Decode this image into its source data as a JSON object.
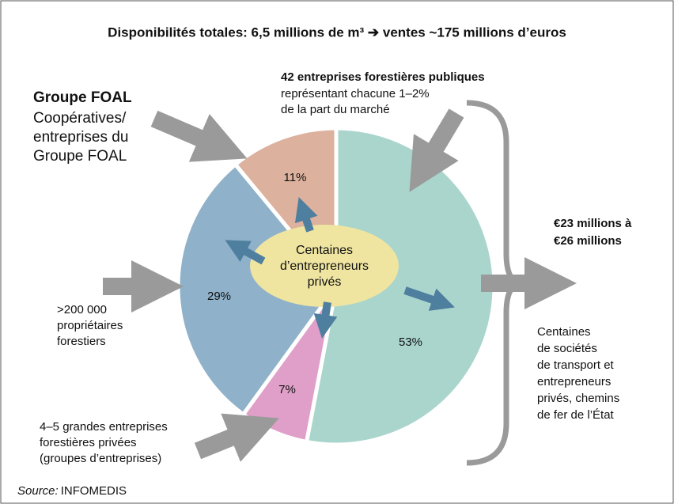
{
  "chart_data": {
    "type": "pie",
    "title": "Disponibilités totales: 6,5 millions de m³ ➔ ventes ~175 millions d’euros",
    "values": [
      53,
      7,
      29,
      11
    ],
    "value_labels": [
      "53%",
      "7%",
      "29%",
      "11%"
    ],
    "colors": [
      "#a9d5cc",
      "#df9fc8",
      "#8fb1c9",
      "#dcb19d"
    ],
    "center_label": [
      "Centaines",
      "d’entrepreneurs",
      "privés"
    ],
    "annotations": {
      "foal_title": "Groupe FOAL",
      "foal": [
        "Coopératives/",
        "entreprises du",
        "Groupe FOAL"
      ],
      "public_title": "42 entreprises forestières publiques",
      "public": [
        "représentant chacune 1–2%",
        "de la part du marché"
      ],
      "owners": [
        ">200 000",
        "propriétaires",
        "forestiers"
      ],
      "private": [
        "4–5 grandes entreprises",
        "forestières privées",
        "(groupes d’entreprises)"
      ],
      "range": [
        "€23 millions à",
        "€26 millions"
      ],
      "buyers": [
        "Centaines",
        "de sociétés",
        "de transport et",
        "entrepreneurs",
        "privés, chemins",
        "de fer de l’État"
      ]
    },
    "source_label": "Source:",
    "source": "INFOMEDIS"
  }
}
